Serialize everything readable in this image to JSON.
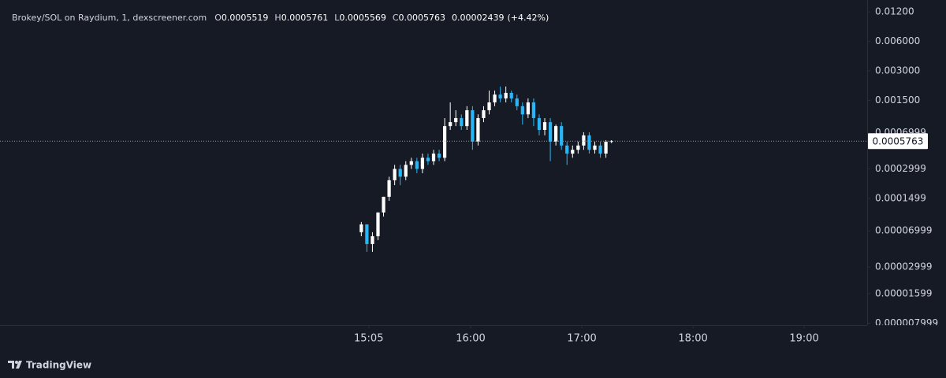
{
  "chart_data": {
    "type": "candlestick",
    "title": "Brokey/SOL on Raydium, 1, dexscreener.com",
    "ohlc_letters": [
      "O",
      "H",
      "L",
      "C"
    ],
    "ohlc_values": [
      0.0005519,
      0.0005761,
      0.0005569,
      0.0005763
    ],
    "change": 2.439e-05,
    "change_label": "(+4.42%)",
    "last_price": 0.0005763,
    "footer": "TradingView",
    "log_scale": true,
    "up_color": "#ffffff",
    "down_color": "#29b6f6",
    "x": [
      "15:01",
      "15:04",
      "15:07",
      "15:10",
      "15:13",
      "15:16",
      "15:19",
      "15:22",
      "15:25",
      "15:28",
      "15:31",
      "15:34",
      "15:37",
      "15:40",
      "15:43",
      "15:46",
      "15:49",
      "15:52",
      "15:55",
      "15:58",
      "16:01",
      "16:04",
      "16:07",
      "16:10",
      "16:13",
      "16:16",
      "16:19",
      "16:22",
      "16:25",
      "16:28",
      "16:31",
      "16:34",
      "16:37",
      "16:40",
      "16:43",
      "16:46",
      "16:49",
      "16:52",
      "16:55",
      "16:58",
      "17:01",
      "17:04",
      "17:07",
      "17:10",
      "17:13",
      "17:16"
    ],
    "open": [
      6.79e-05,
      8.16e-05,
      5.14e-05,
      6.18e-05,
      0.000108,
      0.000156,
      0.00023,
      0.0003,
      0.00025,
      0.00033,
      0.00036,
      0.0003,
      0.00039,
      0.00036,
      0.00043,
      0.00039,
      0.00082,
      0.0009,
      0.00099,
      0.00082,
      0.00119,
      0.00057,
      0.00099,
      0.00119,
      0.00143,
      0.00172,
      0.00157,
      0.00179,
      0.00157,
      0.00131,
      0.00108,
      0.00143,
      0.00099,
      0.00075,
      0.0009,
      0.00057,
      0.00082,
      0.00052,
      0.00043,
      0.00047,
      0.00052,
      0.00066,
      0.00047,
      0.00052,
      0.00043,
      0.00057
    ],
    "high": [
      8.64e-05,
      8.16e-05,
      6.79e-05,
      0.000108,
      0.000156,
      0.00025,
      0.00033,
      0.00033,
      0.00036,
      0.00039,
      0.00039,
      0.00043,
      0.00043,
      0.00047,
      0.00047,
      0.00099,
      0.00143,
      0.00119,
      0.00108,
      0.00131,
      0.00131,
      0.00108,
      0.00131,
      0.00189,
      0.00189,
      0.00208,
      0.00208,
      0.00189,
      0.00172,
      0.00143,
      0.00157,
      0.00157,
      0.00108,
      0.00099,
      0.00099,
      0.00085,
      0.0009,
      0.00057,
      0.00052,
      0.00057,
      0.00071,
      0.00071,
      0.00057,
      0.00057,
      0.00059,
      0.00059
    ],
    "low": [
      6.18e-05,
      4.28e-05,
      4.28e-05,
      5.64e-05,
      9.82e-05,
      0.000142,
      0.000205,
      0.000205,
      0.00023,
      0.0003,
      0.000271,
      0.000271,
      0.00033,
      0.00033,
      0.00036,
      0.00036,
      0.00075,
      0.00082,
      0.00075,
      0.00075,
      0.00047,
      0.00052,
      0.0009,
      0.00108,
      0.00131,
      0.00143,
      0.00143,
      0.00143,
      0.00119,
      0.00085,
      0.00099,
      0.00082,
      0.00066,
      0.00066,
      0.00036,
      0.00052,
      0.00047,
      0.00033,
      0.00039,
      0.00043,
      0.00047,
      0.00043,
      0.00043,
      0.00039,
      0.00039,
      0.00055
    ],
    "close": [
      8.16e-05,
      5.14e-05,
      6.18e-05,
      0.000108,
      0.000156,
      0.00023,
      0.0003,
      0.00025,
      0.00033,
      0.00036,
      0.0003,
      0.00039,
      0.00036,
      0.00043,
      0.00039,
      0.00082,
      0.0009,
      0.00099,
      0.00082,
      0.00119,
      0.00057,
      0.00099,
      0.00119,
      0.00143,
      0.00172,
      0.00157,
      0.00179,
      0.00157,
      0.00131,
      0.00108,
      0.00143,
      0.00099,
      0.00075,
      0.0009,
      0.00057,
      0.00082,
      0.00052,
      0.00043,
      0.00047,
      0.00052,
      0.00066,
      0.00047,
      0.00052,
      0.00043,
      0.00057,
      0.0005763
    ],
    "xlim": [
      "11:46",
      "19:34"
    ],
    "xticks": [
      "15:05",
      "16:00",
      "17:00",
      "18:00",
      "19:00"
    ],
    "ylim": [
      7.64e-06,
      0.01585
    ],
    "yticks": [
      {
        "value": 0.012,
        "label": "0.01200"
      },
      {
        "value": 0.006,
        "label": "0.006000"
      },
      {
        "value": 0.003,
        "label": "0.003000"
      },
      {
        "value": 0.0015,
        "label": "0.001500"
      },
      0.0006999,
      0.0002999,
      0.0001499,
      6.999e-05,
      2.999e-05,
      1.599e-05,
      7.999e-06
    ]
  }
}
